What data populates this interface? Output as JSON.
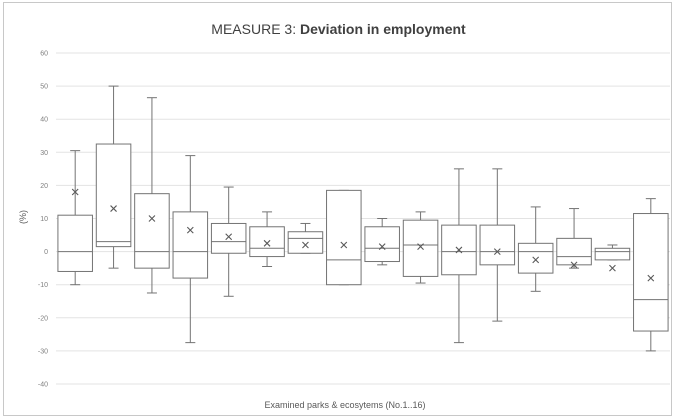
{
  "chart_data": {
    "type": "box",
    "title_prefix": "MEASURE 3: ",
    "title_bold": "Deviation in employment",
    "xlabel": "Examined parks & ecosytems (No.1..16)",
    "ylabel": "(%)",
    "ylim": [
      -40,
      60
    ],
    "yticks": [
      -40,
      -30,
      -20,
      -10,
      0,
      10,
      20,
      30,
      40,
      50,
      60
    ],
    "grid": true,
    "series": [
      {
        "min": -10,
        "q1": -6,
        "median": 0,
        "q3": 11,
        "max": 30.5,
        "mean": 18
      },
      {
        "min": -5,
        "q1": 1.5,
        "median": 3,
        "q3": 32.5,
        "max": 50,
        "mean": 13
      },
      {
        "min": -12.5,
        "q1": -5,
        "median": 0,
        "q3": 17.5,
        "max": 46.5,
        "mean": 10
      },
      {
        "min": -27.5,
        "q1": -8,
        "median": 0,
        "q3": 12,
        "max": 29,
        "mean": 6.5
      },
      {
        "min": -13.5,
        "q1": -0.5,
        "median": 3,
        "q3": 8.5,
        "max": 19.5,
        "mean": 4.5
      },
      {
        "min": -4.5,
        "q1": -1.5,
        "median": 1,
        "q3": 7.5,
        "max": 12,
        "mean": 2.5
      },
      {
        "min": -0.5,
        "q1": -0.5,
        "median": 4,
        "q3": 6,
        "max": 8.5,
        "mean": 2
      },
      {
        "min": -10,
        "q1": -10,
        "median": -2.5,
        "q3": 18.5,
        "max": 18.5,
        "mean": 2
      },
      {
        "min": -4,
        "q1": -3,
        "median": 1,
        "q3": 7.5,
        "max": 10,
        "mean": 1.5
      },
      {
        "min": -9.5,
        "q1": -7.5,
        "median": 2,
        "q3": 9.5,
        "max": 12,
        "mean": 1.5
      },
      {
        "min": -27.5,
        "q1": -7,
        "median": 0,
        "q3": 8,
        "max": 25,
        "mean": 0.5
      },
      {
        "min": -21,
        "q1": -4,
        "median": 0,
        "q3": 8,
        "max": 25,
        "mean": 0
      },
      {
        "min": -12,
        "q1": -6.5,
        "median": 0,
        "q3": 2.5,
        "max": 13.5,
        "mean": -2.5
      },
      {
        "min": -5,
        "q1": -4,
        "median": -1.5,
        "q3": 4,
        "max": 13,
        "mean": -4
      },
      {
        "min": -2.5,
        "q1": -2.5,
        "median": 0,
        "q3": 1,
        "max": 2,
        "mean": -5
      },
      {
        "min": -30,
        "q1": -24,
        "median": -14.5,
        "q3": 11.5,
        "max": 16,
        "mean": -8
      }
    ],
    "colors": {
      "box": "#737373",
      "grid": "#e3e3e3",
      "text": "#404040",
      "tick": "#7f7f7f"
    }
  }
}
